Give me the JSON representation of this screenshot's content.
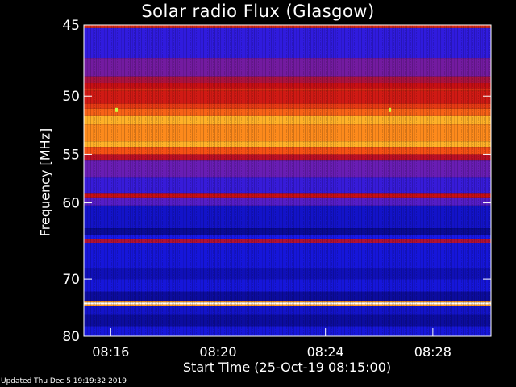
{
  "chart_data": {
    "type": "heatmap",
    "title": "Solar radio Flux (Glasgow)",
    "xlabel": "Start Time (25-Oct-19 08:15:00)",
    "ylabel": "Frequency [MHz]",
    "x_ticks": [
      "08:16",
      "08:20",
      "08:24",
      "08:28"
    ],
    "x_range": [
      "08:15:00",
      "08:30:10"
    ],
    "y_ticks": [
      45,
      50,
      55,
      60,
      70,
      80
    ],
    "ylim": [
      45,
      80
    ],
    "y_scale": "reciprocal",
    "grid": false,
    "colormap": "blue-red-orange-yellow-white",
    "colors": {
      "low": "#1010e6",
      "mid": "#c01018",
      "high": "#ff9a1a",
      "peak": "#ffffff",
      "background": "#000000"
    },
    "bands": [
      {
        "freq": [
          45.0,
          45.2
        ],
        "level": 0.55
      },
      {
        "freq": [
          45.2,
          47.2
        ],
        "level": 0.25
      },
      {
        "freq": [
          47.2,
          48.5
        ],
        "level": 0.35
      },
      {
        "freq": [
          48.5,
          49.0
        ],
        "level": 0.45
      },
      {
        "freq": [
          49.0,
          49.4
        ],
        "level": 0.5
      },
      {
        "freq": [
          49.4,
          49.6
        ],
        "level": 0.55
      },
      {
        "freq": [
          49.6,
          50.6
        ],
        "level": 0.52
      },
      {
        "freq": [
          50.6,
          51.0
        ],
        "level": 0.58
      },
      {
        "freq": [
          51.0,
          51.6
        ],
        "level": 0.65
      },
      {
        "freq": [
          51.6,
          52.3
        ],
        "level": 0.78
      },
      {
        "freq": [
          52.3,
          53.8
        ],
        "level": 0.72
      },
      {
        "freq": [
          53.8,
          54.3
        ],
        "level": 0.78
      },
      {
        "freq": [
          54.3,
          55.0
        ],
        "level": 0.62
      },
      {
        "freq": [
          55.0,
          55.6
        ],
        "level": 0.48
      },
      {
        "freq": [
          55.6,
          57.3
        ],
        "level": 0.33
      },
      {
        "freq": [
          57.3,
          59.0
        ],
        "level": 0.26
      },
      {
        "freq": [
          59.0,
          59.4
        ],
        "level": 0.5
      },
      {
        "freq": [
          59.4,
          60.3
        ],
        "level": 0.3
      },
      {
        "freq": [
          60.3,
          63.0
        ],
        "level": 0.18
      },
      {
        "freq": [
          63.0,
          63.8
        ],
        "level": 0.12
      },
      {
        "freq": [
          63.8,
          64.4
        ],
        "level": 0.22
      },
      {
        "freq": [
          64.4,
          64.9
        ],
        "level": 0.46
      },
      {
        "freq": [
          64.9,
          68.5
        ],
        "level": 0.2
      },
      {
        "freq": [
          68.5,
          70.0
        ],
        "level": 0.16
      },
      {
        "freq": [
          70.0,
          72.0
        ],
        "level": 0.2
      },
      {
        "freq": [
          72.0,
          73.5
        ],
        "level": 0.13
      },
      {
        "freq": [
          73.5,
          73.8
        ],
        "level": 0.74
      },
      {
        "freq": [
          73.8,
          74.1
        ],
        "level": 1.0
      },
      {
        "freq": [
          74.1,
          74.4
        ],
        "level": 0.74
      },
      {
        "freq": [
          74.4,
          76.0
        ],
        "level": 0.18
      },
      {
        "freq": [
          76.0,
          78.0
        ],
        "level": 0.13
      },
      {
        "freq": [
          78.0,
          80.0
        ],
        "level": 0.2
      }
    ],
    "events": [
      {
        "time": "08:16:13",
        "freq": 51.0,
        "level": 0.9
      },
      {
        "time": "08:26:24",
        "freq": 51.0,
        "level": 0.9
      }
    ]
  },
  "footer": "Updated Thu Dec  5 19:19:32 2019"
}
